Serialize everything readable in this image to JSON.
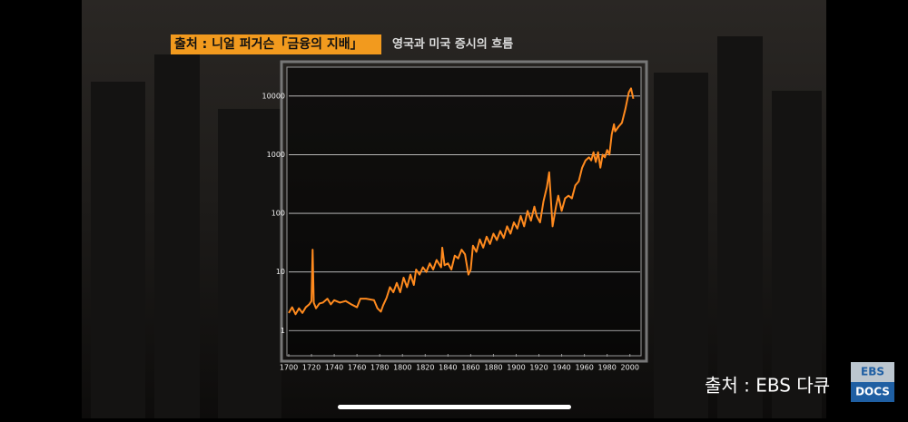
{
  "chart_data": {
    "type": "line",
    "title": "영국과 미국 증시의 흐름",
    "source": "출처 : 니얼 퍼거슨「금융의 지배」",
    "x": [
      1700,
      1703,
      1706,
      1709,
      1712,
      1715,
      1718,
      1720,
      1721,
      1722,
      1724,
      1727,
      1730,
      1734,
      1737,
      1740,
      1745,
      1750,
      1755,
      1760,
      1763,
      1768,
      1775,
      1778,
      1781,
      1783,
      1786,
      1789,
      1792,
      1795,
      1798,
      1801,
      1804,
      1807,
      1810,
      1812,
      1815,
      1818,
      1821,
      1824,
      1827,
      1830,
      1834,
      1835,
      1837,
      1840,
      1843,
      1846,
      1849,
      1852,
      1855,
      1858,
      1860,
      1862,
      1865,
      1868,
      1871,
      1874,
      1877,
      1880,
      1883,
      1886,
      1889,
      1892,
      1895,
      1898,
      1901,
      1904,
      1907,
      1910,
      1913,
      1916,
      1918,
      1921,
      1924,
      1927,
      1929,
      1932,
      1935,
      1937,
      1940,
      1943,
      1946,
      1949,
      1952,
      1955,
      1958,
      1961,
      1964,
      1966,
      1968,
      1970,
      1972,
      1974,
      1976,
      1978,
      1980,
      1982,
      1984,
      1986,
      1987,
      1990,
      1993,
      1996,
      1999,
      2001,
      2003
    ],
    "series": [
      {
        "color": "#ff8a1e",
        "values": [
          2.0,
          2.5,
          1.9,
          2.4,
          2.0,
          2.5,
          2.8,
          3.2,
          24,
          3.0,
          2.4,
          2.9,
          3.0,
          3.5,
          2.8,
          3.3,
          3.0,
          3.2,
          2.8,
          2.5,
          3.5,
          3.5,
          3.3,
          2.4,
          2.1,
          2.7,
          3.6,
          5.5,
          4.5,
          6.5,
          4.5,
          8,
          5.5,
          9,
          6,
          11,
          9,
          12,
          10,
          14,
          11,
          16,
          12,
          26,
          13,
          14,
          11,
          19,
          17,
          24,
          20,
          9,
          11,
          28,
          22,
          36,
          26,
          40,
          30,
          45,
          35,
          50,
          38,
          60,
          45,
          70,
          55,
          90,
          60,
          110,
          75,
          130,
          90,
          70,
          160,
          280,
          500,
          60,
          130,
          200,
          110,
          180,
          200,
          180,
          300,
          350,
          600,
          800,
          900,
          800,
          1100,
          750,
          1100,
          600,
          1000,
          900,
          1200,
          1000,
          2200,
          3300,
          2500,
          3000,
          3500,
          6000,
          11500,
          13500,
          9000
        ]
      }
    ],
    "xlim": [
      1700,
      2009
    ],
    "xticks": [
      1700,
      1720,
      1740,
      1760,
      1780,
      1800,
      1820,
      1840,
      1860,
      1880,
      1900,
      1920,
      1940,
      1960,
      1980,
      2000
    ],
    "ylim": [
      0.4,
      30000
    ],
    "yticks": [
      1,
      10,
      100,
      1000,
      10000
    ],
    "log_scale": true,
    "grid": true
  },
  "overlay": {
    "caption": "출처 : EBS 다큐",
    "logo_top": "EBS",
    "logo_bottom": "DOCS"
  }
}
